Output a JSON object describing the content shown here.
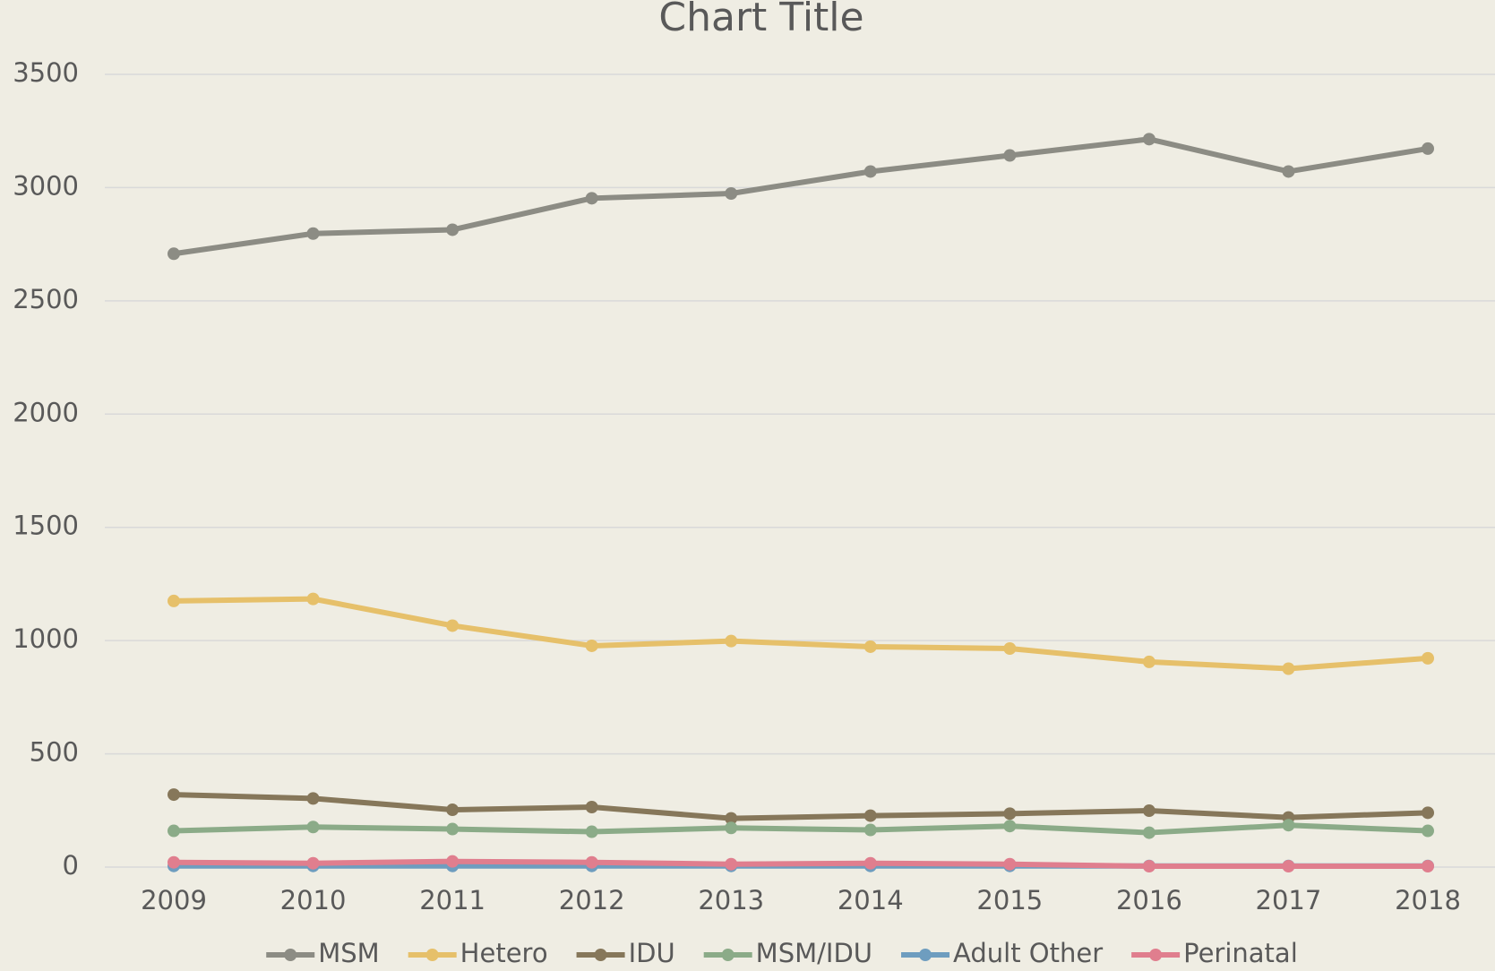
{
  "chart_data": {
    "type": "line",
    "title": "Chart Title",
    "categories": [
      "2009",
      "2010",
      "2011",
      "2012",
      "2013",
      "2014",
      "2015",
      "2016",
      "2017",
      "2018"
    ],
    "series": [
      {
        "name": "MSM",
        "color": "#8c8c84",
        "values": [
          2708,
          2797,
          2814,
          2953,
          2974,
          3071,
          3142,
          3214,
          3071,
          3172
        ]
      },
      {
        "name": "Hetero",
        "color": "#e6c06a",
        "values": [
          1175,
          1184,
          1066,
          977,
          998,
          973,
          965,
          906,
          876,
          922
        ]
      },
      {
        "name": "IDU",
        "color": "#86775a",
        "values": [
          320,
          303,
          253,
          265,
          215,
          227,
          236,
          249,
          219,
          240
        ]
      },
      {
        "name": "MSM/IDU",
        "color": "#8bab88",
        "values": [
          160,
          177,
          168,
          156,
          173,
          164,
          181,
          152,
          185,
          160
        ]
      },
      {
        "name": "Adult Other",
        "color": "#6e9dbf",
        "values": [
          5,
          5,
          5,
          5,
          5,
          5,
          5,
          5,
          5,
          5
        ]
      },
      {
        "name": "Perinatal",
        "color": "#e07e8e",
        "values": [
          21,
          17,
          25,
          21,
          13,
          17,
          13,
          4,
          4,
          4
        ]
      }
    ],
    "ylim": [
      0,
      3500
    ],
    "yticks": [
      0,
      500,
      1000,
      1500,
      2000,
      2500,
      3000,
      3500
    ],
    "grid": true,
    "legend": "bottom"
  }
}
